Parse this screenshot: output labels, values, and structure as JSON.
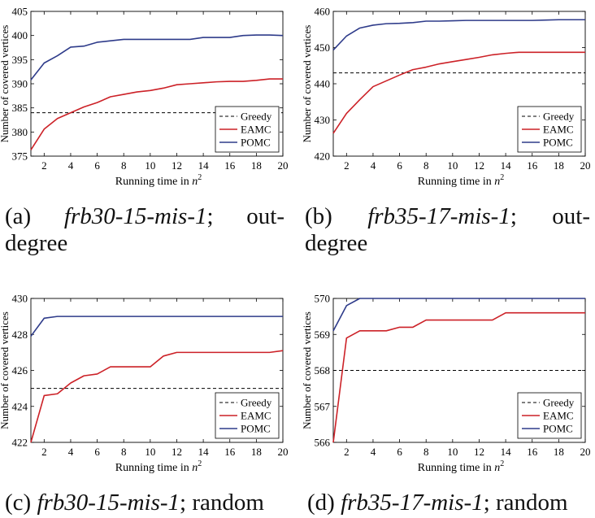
{
  "colors": {
    "greedy": "#000000",
    "eamc": "#cc2127",
    "pomc": "#2e3b8a",
    "axis": "#000000"
  },
  "shared": {
    "xlabel_prefix": "Running time in ",
    "xlabel_var": "n",
    "xlabel_exp": "2",
    "ylabel": "Number of covered vertices",
    "x_ticks": [
      "2",
      "4",
      "6",
      "8",
      "10",
      "12",
      "14",
      "16",
      "18",
      "20"
    ],
    "legend": [
      "Greedy",
      "EAMC",
      "POMC"
    ]
  },
  "chart_data": [
    {
      "type": "line",
      "id": "a",
      "x": [
        1,
        2,
        3,
        4,
        5,
        6,
        7,
        8,
        9,
        10,
        11,
        12,
        13,
        14,
        15,
        16,
        17,
        18,
        19,
        20
      ],
      "xlim": [
        1,
        20
      ],
      "ylim": [
        375,
        405
      ],
      "y_ticks": [
        "375",
        "380",
        "385",
        "390",
        "395",
        "400",
        "405"
      ],
      "legend_placement": "bottom-right",
      "series": [
        {
          "name": "Greedy",
          "style": "dashed",
          "values": [
            384,
            384,
            384,
            384,
            384,
            384,
            384,
            384,
            384,
            384,
            384,
            384,
            384,
            384,
            384,
            384,
            384,
            384,
            384,
            384
          ]
        },
        {
          "name": "EAMC",
          "style": "solid",
          "values": [
            376.3,
            380.6,
            382.8,
            384.0,
            385.2,
            386.1,
            387.3,
            387.8,
            388.3,
            388.6,
            389.1,
            389.8,
            390.0,
            390.2,
            390.4,
            390.5,
            390.5,
            390.7,
            391.0,
            391.0
          ]
        },
        {
          "name": "POMC",
          "style": "solid",
          "values": [
            390.8,
            394.3,
            395.8,
            397.6,
            397.8,
            398.6,
            398.9,
            399.2,
            399.2,
            399.2,
            399.2,
            399.2,
            399.2,
            399.6,
            399.6,
            399.6,
            400.0,
            400.1,
            400.1,
            400.0
          ]
        }
      ],
      "caption": {
        "label": "(a)",
        "name": "frb30-15-mis-1",
        "sep": ";",
        "rest": "out-",
        "line2": "degree"
      }
    },
    {
      "type": "line",
      "id": "b",
      "x": [
        1,
        2,
        3,
        4,
        5,
        6,
        7,
        8,
        9,
        10,
        11,
        12,
        13,
        14,
        15,
        16,
        17,
        18,
        19,
        20
      ],
      "xlim": [
        1,
        20
      ],
      "ylim": [
        420,
        460
      ],
      "y_ticks": [
        "420",
        "430",
        "440",
        "450",
        "460"
      ],
      "legend_placement": "bottom-right",
      "series": [
        {
          "name": "Greedy",
          "style": "dashed",
          "values": [
            443,
            443,
            443,
            443,
            443,
            443,
            443,
            443,
            443,
            443,
            443,
            443,
            443,
            443,
            443,
            443,
            443,
            443,
            443,
            443
          ]
        },
        {
          "name": "EAMC",
          "style": "solid",
          "values": [
            426.3,
            431.8,
            435.6,
            439.2,
            440.8,
            442.4,
            443.9,
            444.6,
            445.5,
            446.1,
            446.7,
            447.3,
            448.0,
            448.4,
            448.7,
            448.7,
            448.7,
            448.7,
            448.7,
            448.7
          ]
        },
        {
          "name": "POMC",
          "style": "solid",
          "values": [
            449.3,
            453.2,
            455.4,
            456.2,
            456.6,
            456.7,
            456.9,
            457.3,
            457.3,
            457.4,
            457.5,
            457.5,
            457.5,
            457.5,
            457.5,
            457.5,
            457.6,
            457.7,
            457.7,
            457.7
          ]
        }
      ],
      "caption": {
        "label": "(b)",
        "name": "frb35-17-mis-1",
        "sep": ";",
        "rest": "out-",
        "line2": "degree"
      }
    },
    {
      "type": "line",
      "id": "c",
      "x": [
        1,
        2,
        3,
        4,
        5,
        6,
        7,
        8,
        9,
        10,
        11,
        12,
        13,
        14,
        15,
        16,
        17,
        18,
        19,
        20
      ],
      "xlim": [
        1,
        20
      ],
      "ylim": [
        422,
        430
      ],
      "y_ticks": [
        "422",
        "424",
        "426",
        "428",
        "430"
      ],
      "legend_placement": "bottom-right",
      "series": [
        {
          "name": "Greedy",
          "style": "dashed",
          "values": [
            425,
            425,
            425,
            425,
            425,
            425,
            425,
            425,
            425,
            425,
            425,
            425,
            425,
            425,
            425,
            425,
            425,
            425,
            425,
            425
          ]
        },
        {
          "name": "EAMC",
          "style": "solid",
          "values": [
            422.0,
            424.6,
            424.7,
            425.3,
            425.7,
            425.8,
            426.2,
            426.2,
            426.2,
            426.2,
            426.8,
            427.0,
            427.0,
            427.0,
            427.0,
            427.0,
            427.0,
            427.0,
            427.0,
            427.1
          ]
        },
        {
          "name": "POMC",
          "style": "solid",
          "values": [
            427.9,
            428.9,
            429.0,
            429.0,
            429.0,
            429.0,
            429.0,
            429.0,
            429.0,
            429.0,
            429.0,
            429.0,
            429.0,
            429.0,
            429.0,
            429.0,
            429.0,
            429.0,
            429.0,
            429.0
          ]
        }
      ],
      "caption": {
        "label": "(c)",
        "name": "frb30-15-mis-1",
        "sep": ";",
        "rest": "random"
      }
    },
    {
      "type": "line",
      "id": "d",
      "x": [
        1,
        2,
        3,
        4,
        5,
        6,
        7,
        8,
        9,
        10,
        11,
        12,
        13,
        14,
        15,
        16,
        17,
        18,
        19,
        20
      ],
      "xlim": [
        1,
        20
      ],
      "ylim": [
        566,
        570
      ],
      "y_ticks": [
        "566",
        "567",
        "568",
        "569",
        "570"
      ],
      "legend_placement": "bottom-right",
      "series": [
        {
          "name": "Greedy",
          "style": "dashed",
          "values": [
            568,
            568,
            568,
            568,
            568,
            568,
            568,
            568,
            568,
            568,
            568,
            568,
            568,
            568,
            568,
            568,
            568,
            568,
            568,
            568
          ]
        },
        {
          "name": "EAMC",
          "style": "solid",
          "values": [
            566.0,
            568.9,
            569.1,
            569.1,
            569.1,
            569.2,
            569.2,
            569.4,
            569.4,
            569.4,
            569.4,
            569.4,
            569.4,
            569.6,
            569.6,
            569.6,
            569.6,
            569.6,
            569.6,
            569.6
          ]
        },
        {
          "name": "POMC",
          "style": "solid",
          "values": [
            569.1,
            569.8,
            570.0,
            570.0,
            570.0,
            570.0,
            570.0,
            570.0,
            570.0,
            570.0,
            570.0,
            570.0,
            570.0,
            570.0,
            570.0,
            570.0,
            570.0,
            570.0,
            570.0,
            570.0
          ]
        }
      ],
      "caption": {
        "label": "(d)",
        "name": "frb35-17-mis-1",
        "sep": ";",
        "rest": "random"
      }
    }
  ]
}
